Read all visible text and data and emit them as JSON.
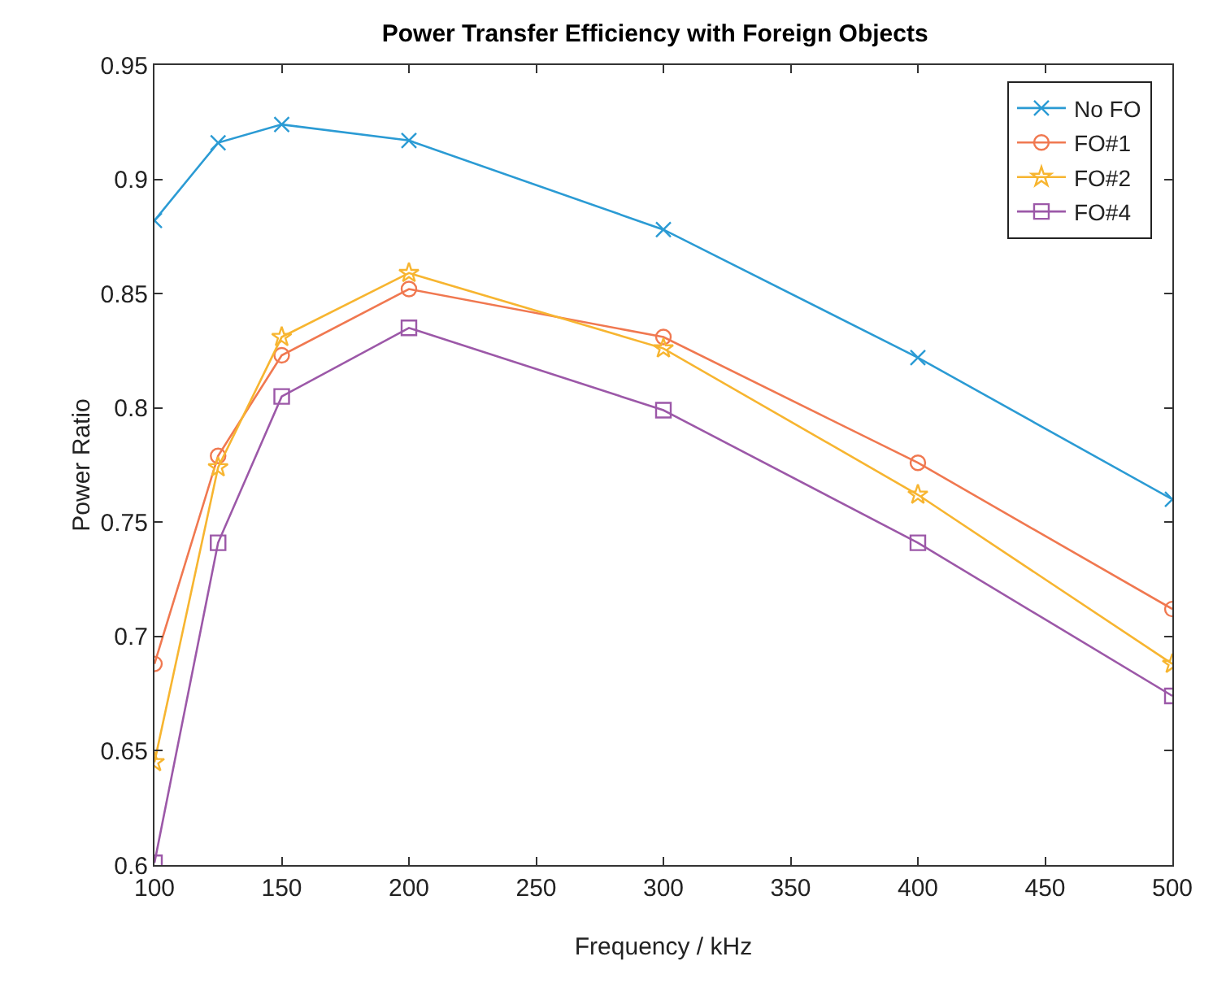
{
  "chart_data": {
    "type": "line",
    "title": "Power Transfer Efficiency with Foreign Objects",
    "xlabel": "Frequency / kHz",
    "ylabel": "Power Ratio",
    "x": [
      100,
      125,
      150,
      200,
      300,
      400,
      500
    ],
    "series": [
      {
        "name": "No FO",
        "color": "#2b9bd4",
        "marker": "cross",
        "values": [
          0.882,
          0.916,
          0.924,
          0.917,
          0.878,
          0.822,
          0.76
        ]
      },
      {
        "name": "FO#1",
        "color": "#f07850",
        "marker": "circle",
        "values": [
          0.688,
          0.779,
          0.823,
          0.852,
          0.831,
          0.776,
          0.712
        ]
      },
      {
        "name": "FO#2",
        "color": "#f7b530",
        "marker": "star",
        "values": [
          0.645,
          0.774,
          0.831,
          0.859,
          0.826,
          0.762,
          0.688
        ]
      },
      {
        "name": "FO#4",
        "color": "#9c58a8",
        "marker": "square",
        "values": [
          0.601,
          0.741,
          0.805,
          0.835,
          0.799,
          0.741,
          0.674
        ]
      }
    ],
    "xlim": [
      100,
      500
    ],
    "xticks": [
      100,
      150,
      200,
      250,
      300,
      350,
      400,
      450,
      500
    ],
    "ylim": [
      0.6,
      0.95
    ],
    "yticks": [
      0.6,
      0.65,
      0.7,
      0.75,
      0.8,
      0.85,
      0.9,
      0.95
    ],
    "grid": false,
    "legend": "top right",
    "line_style": "solid"
  }
}
